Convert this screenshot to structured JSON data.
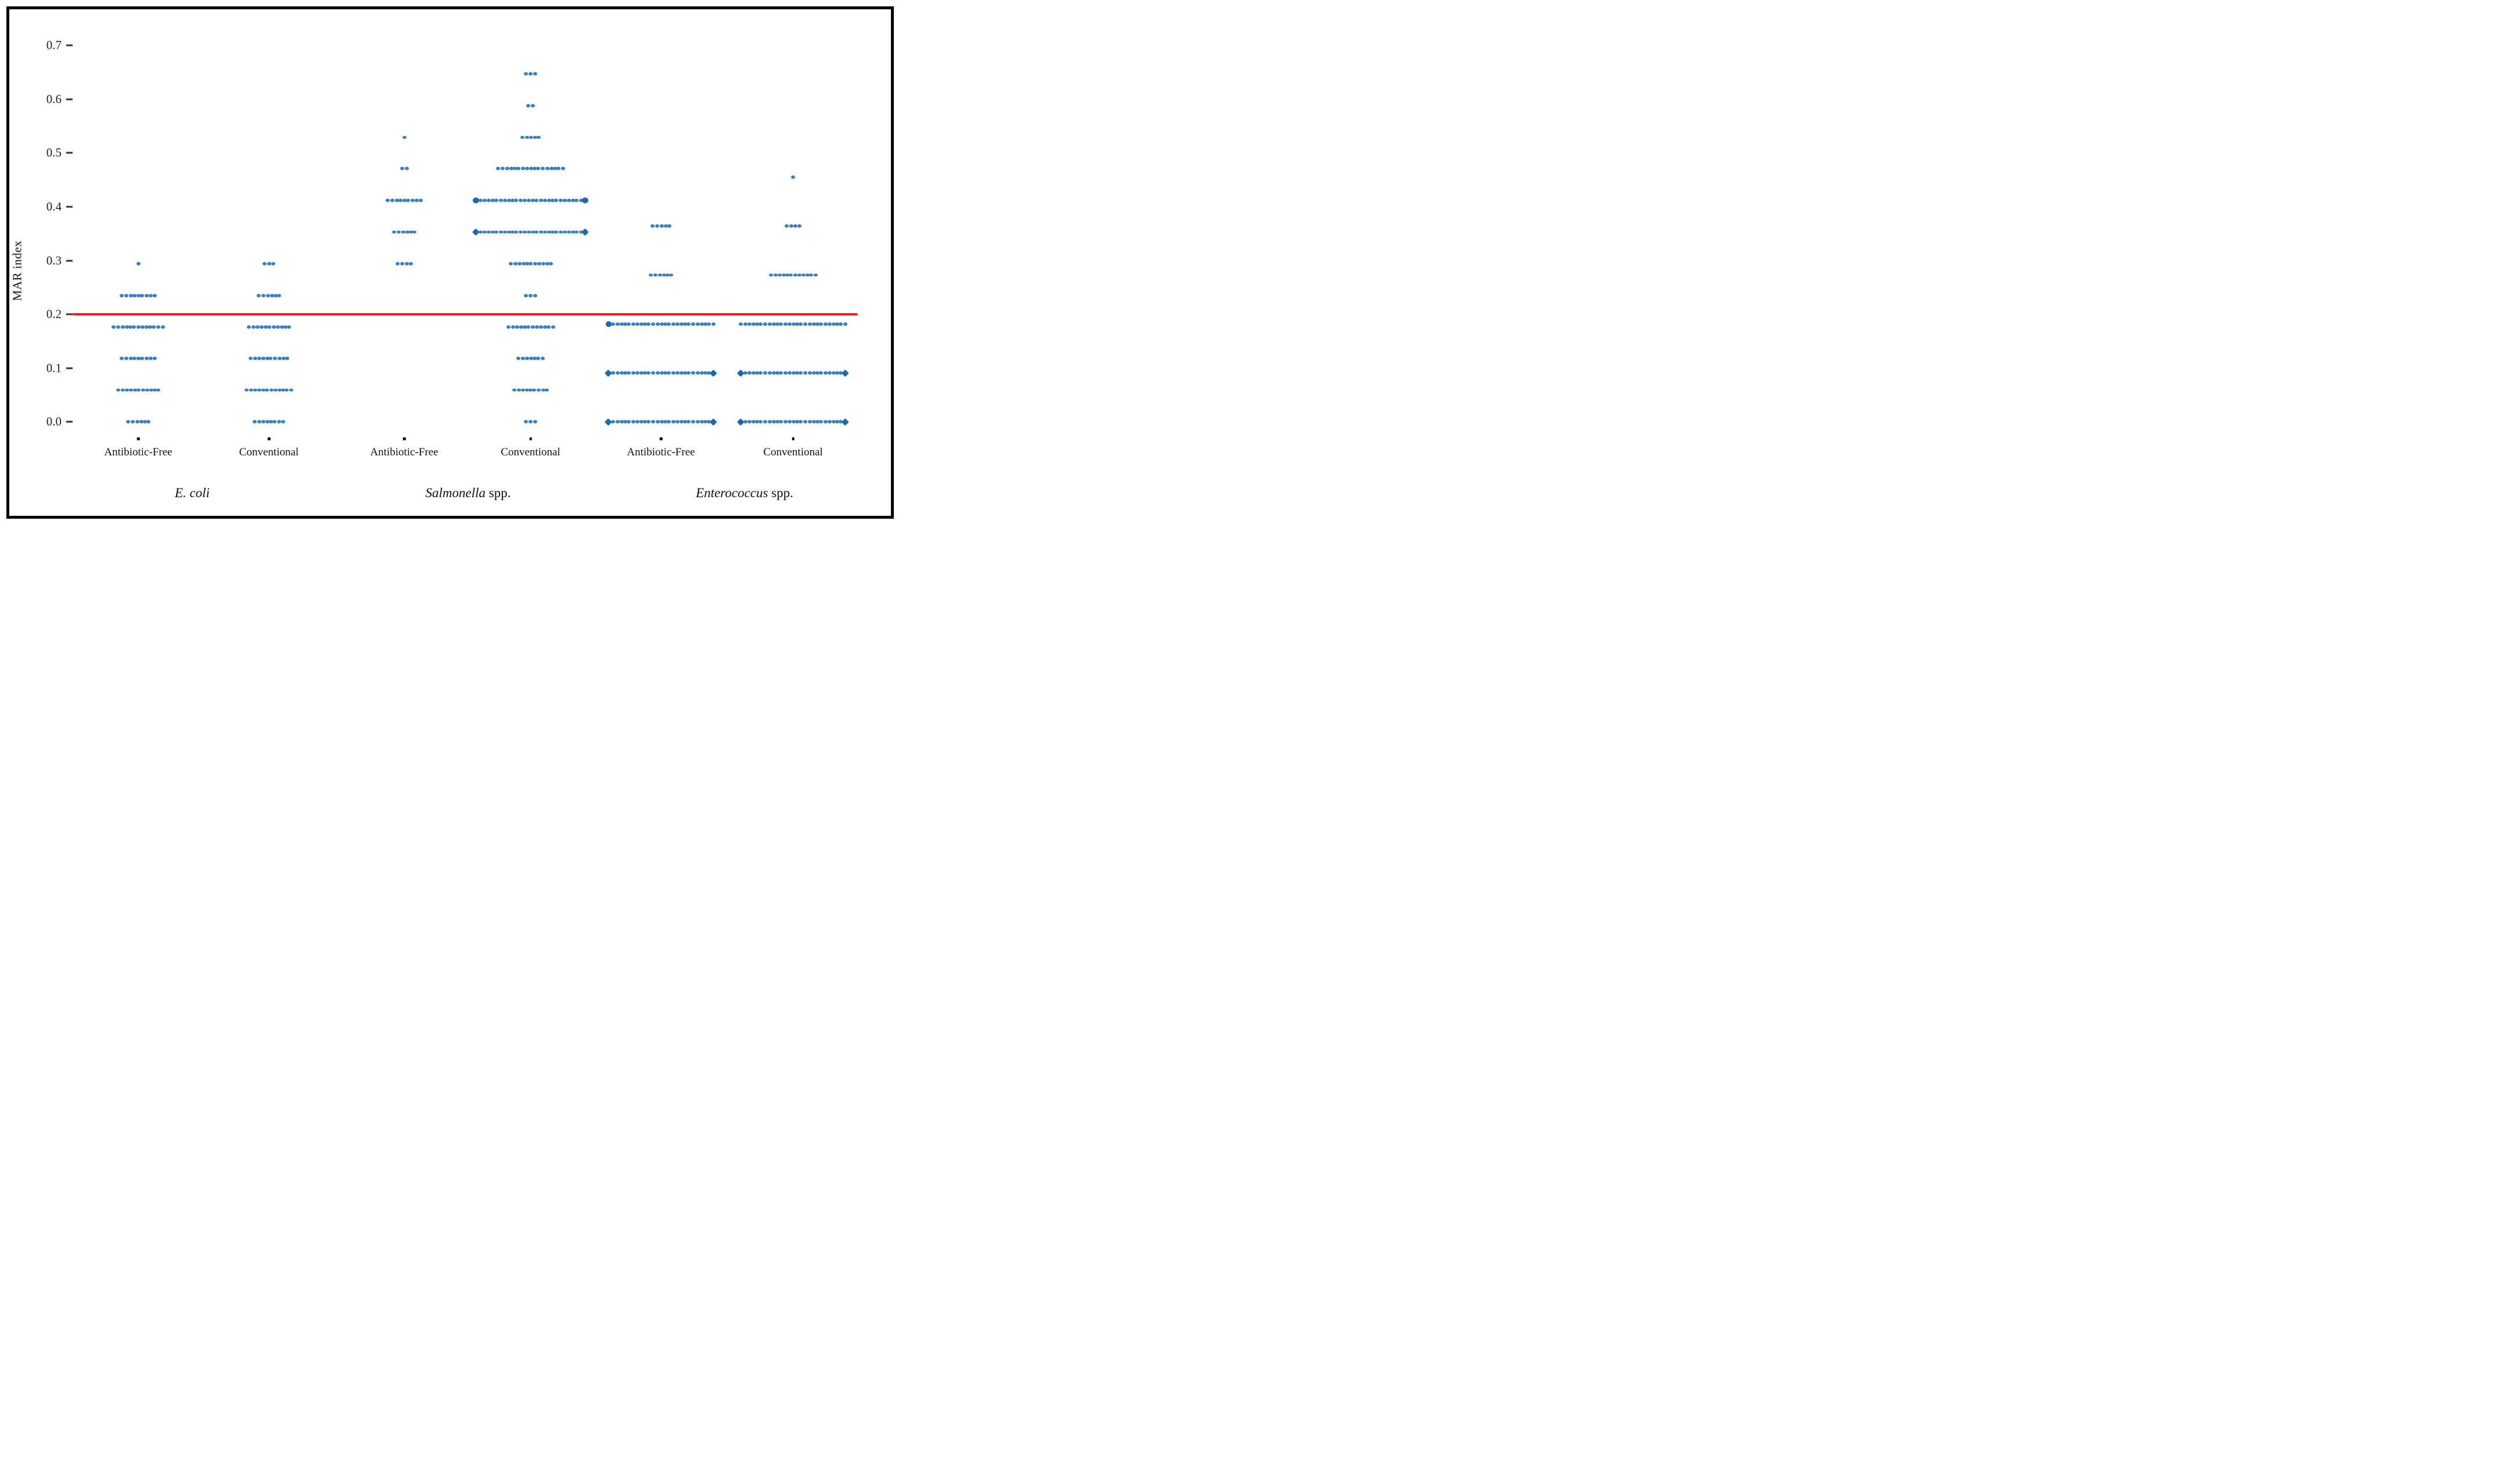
{
  "chart_data": {
    "type": "scatter",
    "variant": "strip-dot-plot",
    "title": "",
    "ylabel": "MAR index",
    "xlabel": "",
    "ylim": [
      -0.03,
      0.73
    ],
    "grid": false,
    "legend": "none",
    "y_ticks": [
      {
        "label": "0.7",
        "value": 0.7
      },
      {
        "label": "0.6",
        "value": 0.6
      },
      {
        "label": "0.5",
        "value": 0.5
      },
      {
        "label": "0.4",
        "value": 0.4
      },
      {
        "label": "0.3",
        "value": 0.3
      },
      {
        "label": "0.2",
        "value": 0.2
      },
      {
        "label": "0.1",
        "value": 0.1
      },
      {
        "label": "0.0",
        "value": 0.0
      }
    ],
    "threshold_line": {
      "value": 0.2,
      "color": "#fa1e1e"
    },
    "dot_color": "#3a80c2",
    "emphasis_color": "#1a68af",
    "tick_color": "#111111",
    "species_groups": [
      {
        "species_italic": "E. coli",
        "species_suffix": "",
        "conditions": [
          {
            "label": "Antibiotic-Free",
            "rows": [
              {
                "value": 0.294,
                "count": 1,
                "ends": "none"
              },
              {
                "value": 0.235,
                "count": 9,
                "ends": "none"
              },
              {
                "value": 0.176,
                "count": 13,
                "ends": "none"
              },
              {
                "value": 0.118,
                "count": 9,
                "ends": "none"
              },
              {
                "value": 0.059,
                "count": 11,
                "ends": "none"
              },
              {
                "value": 0.0,
                "count": 6,
                "ends": "none"
              }
            ]
          },
          {
            "label": "Conventional",
            "rows": [
              {
                "value": 0.294,
                "count": 3,
                "ends": "none"
              },
              {
                "value": 0.235,
                "count": 6,
                "ends": "none"
              },
              {
                "value": 0.176,
                "count": 11,
                "ends": "none"
              },
              {
                "value": 0.118,
                "count": 10,
                "ends": "none"
              },
              {
                "value": 0.059,
                "count": 12,
                "ends": "none"
              },
              {
                "value": 0.0,
                "count": 8,
                "ends": "none"
              }
            ]
          }
        ]
      },
      {
        "species_italic": "Salmonella",
        "species_suffix": " spp.",
        "conditions": [
          {
            "label": "Antibiotic-Free",
            "rows": [
              {
                "value": 0.529,
                "count": 1,
                "ends": "none"
              },
              {
                "value": 0.471,
                "count": 2,
                "ends": "none"
              },
              {
                "value": 0.412,
                "count": 9,
                "ends": "none"
              },
              {
                "value": 0.353,
                "count": 6,
                "ends": "none"
              },
              {
                "value": 0.294,
                "count": 4,
                "ends": "none"
              }
            ]
          },
          {
            "label": "Conventional",
            "rows": [
              {
                "value": 0.647,
                "count": 3,
                "ends": "none"
              },
              {
                "value": 0.588,
                "count": 2,
                "ends": "none"
              },
              {
                "value": 0.529,
                "count": 5,
                "ends": "none"
              },
              {
                "value": 0.471,
                "count": 17,
                "ends": "none"
              },
              {
                "value": 0.412,
                "count": 26,
                "ends": "bigdot"
              },
              {
                "value": 0.353,
                "count": 26,
                "ends": "diamond"
              },
              {
                "value": 0.294,
                "count": 11,
                "ends": "none"
              },
              {
                "value": 0.235,
                "count": 3,
                "ends": "none"
              },
              {
                "value": 0.176,
                "count": 12,
                "ends": "none"
              },
              {
                "value": 0.118,
                "count": 7,
                "ends": "none"
              },
              {
                "value": 0.059,
                "count": 9,
                "ends": "none"
              },
              {
                "value": 0.0,
                "count": 3,
                "ends": "none"
              }
            ]
          }
        ]
      },
      {
        "species_italic": "Enterococcus",
        "species_suffix": " spp.",
        "conditions": [
          {
            "label": "Antibiotic-Free",
            "rows": [
              {
                "value": 0.364,
                "count": 5,
                "ends": "none"
              },
              {
                "value": 0.273,
                "count": 6,
                "ends": "none"
              },
              {
                "value": 0.182,
                "count": 26,
                "ends": "bigdot-left"
              },
              {
                "value": 0.091,
                "count": 25,
                "ends": "diamond"
              },
              {
                "value": 0.0,
                "count": 25,
                "ends": "diamond"
              }
            ]
          },
          {
            "label": "Conventional",
            "rows": [
              {
                "value": 0.455,
                "count": 1,
                "ends": "none"
              },
              {
                "value": 0.364,
                "count": 4,
                "ends": "none"
              },
              {
                "value": 0.273,
                "count": 12,
                "ends": "none"
              },
              {
                "value": 0.182,
                "count": 27,
                "ends": "none"
              },
              {
                "value": 0.091,
                "count": 25,
                "ends": "diamond"
              },
              {
                "value": 0.0,
                "count": 25,
                "ends": "diamond"
              }
            ]
          }
        ]
      }
    ]
  }
}
